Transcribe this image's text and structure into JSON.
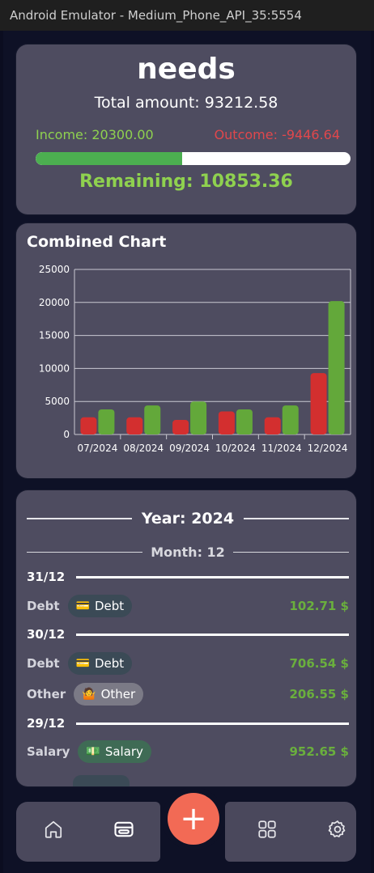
{
  "window": {
    "title": "Android Emulator - Medium_Phone_API_35:5554"
  },
  "summary": {
    "title": "needs",
    "total": "Total amount: 93212.58",
    "income": "Income: 20300.00",
    "outcome": "Outcome: -9446.64",
    "progress_fraction": 0.465,
    "remaining": "Remaining: 10853.36"
  },
  "colors": {
    "income": "#8fd14f",
    "outcome": "#e0474c",
    "accent": "#f26a55",
    "card": "#4e4c60"
  },
  "chart_data": {
    "type": "bar",
    "title": "Combined Chart",
    "categories": [
      "07/2024",
      "08/2024",
      "09/2024",
      "10/2024",
      "11/2024",
      "12/2024"
    ],
    "series": [
      {
        "color": "#d32f2f",
        "values": [
          2600,
          2600,
          2200,
          3500,
          2600,
          9300
        ]
      },
      {
        "color": "#63a83a",
        "values": [
          3800,
          4400,
          5000,
          3800,
          4400,
          20200
        ]
      }
    ],
    "ylim": [
      0,
      25000
    ],
    "yticks": [
      0,
      5000,
      10000,
      15000,
      20000,
      25000
    ],
    "xlabel": "",
    "ylabel": "",
    "grid": true
  },
  "list": {
    "year_label": "Year: 2024",
    "month_label": "Month: 12",
    "groups": [
      {
        "day": "31/12",
        "items": [
          {
            "category": "Debt",
            "chip_icon": "credit-card-icon",
            "chip_emoji": "💳",
            "chip_label": "Debt",
            "chip_color": "#3b4a56",
            "amount": "102.71 $"
          }
        ]
      },
      {
        "day": "30/12",
        "items": [
          {
            "category": "Debt",
            "chip_icon": "credit-card-icon",
            "chip_emoji": "💳",
            "chip_label": "Debt",
            "chip_color": "#3b4a56",
            "amount": "706.54 $"
          },
          {
            "category": "Other",
            "chip_icon": "shrug-person-icon",
            "chip_emoji": "🤷",
            "chip_label": "Other",
            "chip_color": "#7b7a86",
            "amount": "206.55 $"
          }
        ]
      },
      {
        "day": "29/12",
        "items": [
          {
            "category": "Salary",
            "chip_icon": "money-bill-icon",
            "chip_emoji": "💵",
            "chip_label": "Salary",
            "chip_color": "#3f6b55",
            "amount": "952.65 $"
          }
        ]
      }
    ]
  },
  "nav": {
    "items": [
      "home-icon",
      "wallet-icon",
      "add-icon",
      "grid-icon",
      "settings-icon"
    ],
    "fab_symbol": "+"
  }
}
